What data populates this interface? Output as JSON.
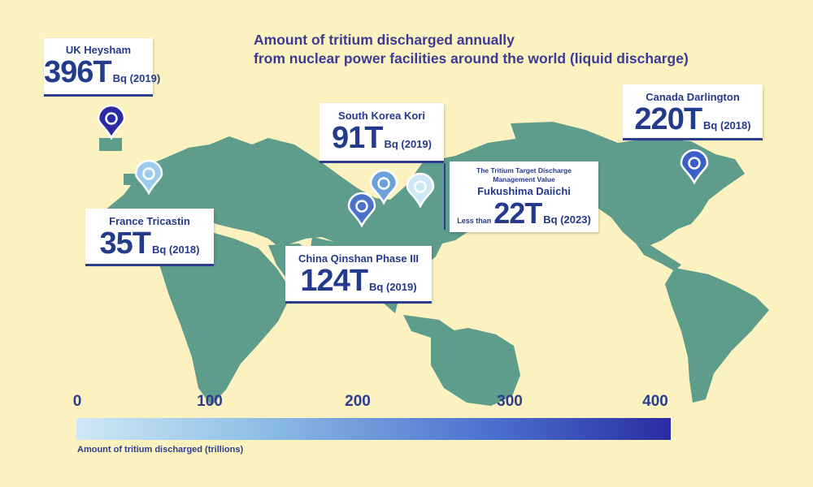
{
  "title": {
    "line1": "Amount of tritium discharged annually",
    "line2": "from nuclear power facilities around the world (liquid discharge)"
  },
  "facilities": {
    "heysham": {
      "name": "UK Heysham",
      "amount": "396T",
      "unit": "Bq (2019)",
      "value_trillion": 396
    },
    "kori": {
      "name": "South Korea Kori",
      "amount": "91T",
      "unit": "Bq (2019)",
      "value_trillion": 91
    },
    "darlington": {
      "name": "Canada Darlington",
      "amount": "220T",
      "unit": "Bq (2018)",
      "value_trillion": 220
    },
    "tricastin": {
      "name": "France Tricastin",
      "amount": "35T",
      "unit": "Bq (2018)",
      "value_trillion": 35
    },
    "qinshan": {
      "name": "China Qinshan Phase III",
      "amount": "124T",
      "unit": "Bq (2019)",
      "value_trillion": 124
    },
    "fukushima": {
      "subtitle_line1": "The Tritium Target Discharge",
      "subtitle_line2": "Management Value",
      "name": "Fukushima Daiichi",
      "prefix": "Less than",
      "amount": "22T",
      "unit": "Bq (2023)",
      "value_trillion": 22
    }
  },
  "pin_colors": {
    "heysham": "#2b2ca3",
    "kori": "#6ba2da",
    "darlington": "#3b5fc8",
    "tricastin": "#9dcdee",
    "qinshan": "#4a72c9",
    "fukushima": "#cfe8f6"
  },
  "scale": {
    "ticks": [
      "0",
      "100",
      "200",
      "300",
      "400"
    ],
    "caption": "Amount of tritium discharged (trillions)",
    "gradient_colors": [
      "#cfe8f6",
      "#2b2ca3"
    ]
  },
  "colors": {
    "background": "#fbf2c0",
    "land": "#5e9c8c",
    "text": "#2c3d8f"
  }
}
